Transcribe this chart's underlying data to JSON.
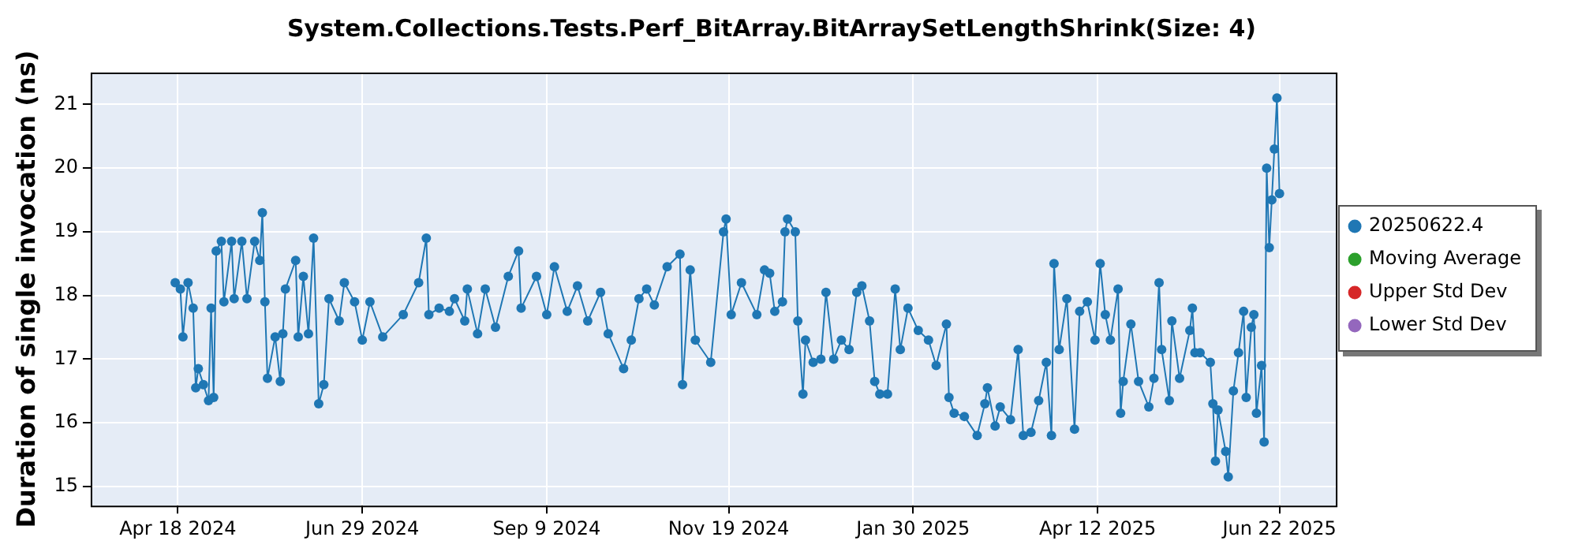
{
  "chart_data": {
    "type": "line",
    "title": "System.Collections.Tests.Perf_BitArray.BitArraySetLengthShrink(Size: 4)",
    "ylabel": "Duration of single invocation (ns)",
    "xlim": [
      "2024-03-15",
      "2025-07-14"
    ],
    "ylim": [
      14.7,
      21.5
    ],
    "xticks": [
      {
        "value": "2024-04-18",
        "label": "Apr 18 2024"
      },
      {
        "value": "2024-06-29",
        "label": "Jun 29 2024"
      },
      {
        "value": "2024-09-09",
        "label": "Sep 9 2024"
      },
      {
        "value": "2024-11-19",
        "label": "Nov 19 2024"
      },
      {
        "value": "2025-01-30",
        "label": "Jan 30 2025"
      },
      {
        "value": "2025-04-12",
        "label": "Apr 12 2025"
      },
      {
        "value": "2025-06-22",
        "label": "Jun 22 2025"
      }
    ],
    "yticks": [
      15,
      16,
      17,
      18,
      19,
      20,
      21
    ],
    "grid": true,
    "legend": "right",
    "marker": "circle",
    "line_style": "solid",
    "series": [
      {
        "name": "20250622.4",
        "color": "#1f77b4",
        "x": [
          "2024-04-17",
          "2024-04-19",
          "2024-04-20",
          "2024-04-22",
          "2024-04-24",
          "2024-04-25",
          "2024-04-26",
          "2024-04-28",
          "2024-04-30",
          "2024-05-01",
          "2024-05-02",
          "2024-05-03",
          "2024-05-05",
          "2024-05-06",
          "2024-05-09",
          "2024-05-10",
          "2024-05-13",
          "2024-05-15",
          "2024-05-18",
          "2024-05-20",
          "2024-05-21",
          "2024-05-22",
          "2024-05-23",
          "2024-05-26",
          "2024-05-28",
          "2024-05-29",
          "2024-05-30",
          "2024-06-03",
          "2024-06-04",
          "2024-06-06",
          "2024-06-08",
          "2024-06-10",
          "2024-06-12",
          "2024-06-14",
          "2024-06-16",
          "2024-06-20",
          "2024-06-22",
          "2024-06-26",
          "2024-06-29",
          "2024-07-02",
          "2024-07-07",
          "2024-07-15",
          "2024-07-21",
          "2024-07-24",
          "2024-07-25",
          "2024-07-29",
          "2024-08-02",
          "2024-08-04",
          "2024-08-08",
          "2024-08-09",
          "2024-08-13",
          "2024-08-16",
          "2024-08-20",
          "2024-08-25",
          "2024-08-29",
          "2024-08-30",
          "2024-09-05",
          "2024-09-09",
          "2024-09-12",
          "2024-09-17",
          "2024-09-21",
          "2024-09-25",
          "2024-09-30",
          "2024-10-03",
          "2024-10-09",
          "2024-10-12",
          "2024-10-15",
          "2024-10-18",
          "2024-10-21",
          "2024-10-26",
          "2024-10-31",
          "2024-11-01",
          "2024-11-04",
          "2024-11-06",
          "2024-11-12",
          "2024-11-17",
          "2024-11-18",
          "2024-11-20",
          "2024-11-24",
          "2024-11-30",
          "2024-12-03",
          "2024-12-05",
          "2024-12-07",
          "2024-12-10",
          "2024-12-11",
          "2024-12-12",
          "2024-12-15",
          "2024-12-16",
          "2024-12-18",
          "2024-12-19",
          "2024-12-22",
          "2024-12-25",
          "2024-12-27",
          "2024-12-30",
          "2025-01-02",
          "2025-01-05",
          "2025-01-08",
          "2025-01-10",
          "2025-01-13",
          "2025-01-15",
          "2025-01-17",
          "2025-01-20",
          "2025-01-23",
          "2025-01-25",
          "2025-01-28",
          "2025-02-01",
          "2025-02-05",
          "2025-02-08",
          "2025-02-12",
          "2025-02-13",
          "2025-02-15",
          "2025-02-19",
          "2025-02-24",
          "2025-02-27",
          "2025-02-28",
          "2025-03-03",
          "2025-03-05",
          "2025-03-09",
          "2025-03-12",
          "2025-03-14",
          "2025-03-17",
          "2025-03-20",
          "2025-03-23",
          "2025-03-25",
          "2025-03-26",
          "2025-03-28",
          "2025-03-31",
          "2025-04-03",
          "2025-04-05",
          "2025-04-08",
          "2025-04-11",
          "2025-04-13",
          "2025-04-15",
          "2025-04-17",
          "2025-04-20",
          "2025-04-21",
          "2025-04-22",
          "2025-04-25",
          "2025-04-28",
          "2025-05-02",
          "2025-05-04",
          "2025-05-06",
          "2025-05-07",
          "2025-05-10",
          "2025-05-11",
          "2025-05-14",
          "2025-05-18",
          "2025-05-19",
          "2025-05-20",
          "2025-05-22",
          "2025-05-26",
          "2025-05-27",
          "2025-05-28",
          "2025-05-29",
          "2025-06-01",
          "2025-06-02",
          "2025-06-04",
          "2025-06-06",
          "2025-06-08",
          "2025-06-09",
          "2025-06-11",
          "2025-06-12",
          "2025-06-13",
          "2025-06-15",
          "2025-06-16",
          "2025-06-17",
          "2025-06-18",
          "2025-06-19",
          "2025-06-20",
          "2025-06-21",
          "2025-06-22"
        ],
        "values": [
          18.2,
          18.1,
          17.35,
          18.2,
          17.8,
          16.55,
          16.85,
          16.6,
          16.35,
          17.8,
          16.4,
          18.7,
          18.85,
          17.9,
          18.85,
          17.95,
          18.85,
          17.95,
          18.85,
          18.55,
          19.3,
          17.9,
          16.7,
          17.35,
          16.65,
          17.4,
          18.1,
          18.55,
          17.35,
          18.3,
          17.4,
          18.9,
          16.3,
          16.6,
          17.95,
          17.6,
          18.2,
          17.9,
          17.3,
          17.9,
          17.35,
          17.7,
          18.2,
          18.9,
          17.7,
          17.8,
          17.75,
          17.95,
          17.6,
          18.1,
          17.4,
          18.1,
          17.5,
          18.3,
          18.7,
          17.8,
          18.3,
          17.7,
          18.45,
          17.75,
          18.15,
          17.6,
          18.05,
          17.4,
          16.85,
          17.3,
          17.95,
          18.1,
          17.85,
          18.45,
          18.65,
          16.6,
          18.4,
          17.3,
          16.95,
          19.0,
          19.2,
          17.7,
          18.2,
          17.7,
          18.4,
          18.35,
          17.75,
          17.9,
          19.0,
          19.2,
          19.0,
          17.6,
          16.45,
          17.3,
          16.95,
          17.0,
          18.05,
          17.0,
          17.3,
          17.15,
          18.05,
          18.15,
          17.6,
          16.65,
          16.45,
          16.45,
          18.1,
          17.15,
          17.8,
          17.45,
          17.3,
          16.9,
          17.55,
          16.4,
          16.15,
          16.1,
          15.8,
          16.3,
          16.55,
          15.95,
          16.25,
          16.05,
          17.15,
          15.8,
          15.85,
          16.35,
          16.95,
          15.8,
          18.5,
          17.15,
          17.95,
          15.9,
          17.75,
          17.9,
          17.3,
          18.5,
          17.7,
          17.3,
          18.1,
          16.15,
          16.65,
          17.55,
          16.65,
          16.25,
          16.7,
          18.2,
          17.15,
          16.35,
          17.6,
          16.7,
          17.45,
          17.8,
          17.1,
          17.1,
          16.95,
          16.3,
          15.4,
          16.2,
          15.55,
          15.15,
          16.5,
          17.1,
          17.75,
          16.4,
          17.5,
          17.7,
          16.15,
          16.9,
          15.7,
          20.0,
          18.75,
          19.5,
          20.3,
          21.1,
          19.6
        ]
      },
      {
        "name": "Moving Average",
        "color": "#2ca02c"
      },
      {
        "name": "Upper Std Dev",
        "color": "#d62728"
      },
      {
        "name": "Lower Std Dev",
        "color": "#9467bd"
      }
    ]
  }
}
